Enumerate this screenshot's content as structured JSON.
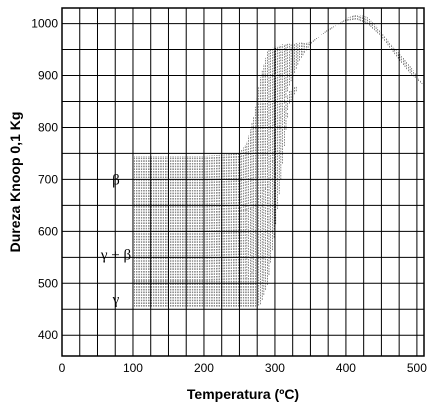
{
  "chart_data": {
    "type": "area",
    "xlabel": "Temperatura (ºC)",
    "ylabel": "Dureza Knoop 0,1 Kg",
    "xlim": [
      0,
      510
    ],
    "ylim": [
      360,
      1030
    ],
    "x_ticks": [
      0,
      100,
      200,
      300,
      400,
      500
    ],
    "x_tick_labels": [
      "0",
      "100",
      "200",
      "300",
      "400",
      "500"
    ],
    "y_ticks": [
      400,
      500,
      600,
      700,
      800,
      900,
      1000
    ],
    "y_tick_labels": [
      "400",
      "500",
      "600",
      "700",
      "800",
      "900",
      "1000"
    ],
    "grid": true,
    "grid_x_step": 25,
    "grid_y_step": 50,
    "series": [
      {
        "name": "β",
        "lower": [
          [
            100,
            635
          ],
          [
            200,
            635
          ],
          [
            250,
            638
          ],
          [
            270,
            645
          ],
          [
            290,
            690
          ],
          [
            300,
            760
          ],
          [
            310,
            830
          ],
          [
            320,
            880
          ],
          [
            335,
            930
          ],
          [
            350,
            960
          ],
          [
            375,
            990
          ],
          [
            400,
            1005
          ],
          [
            415,
            1008
          ],
          [
            430,
            1000
          ],
          [
            450,
            975
          ],
          [
            475,
            930
          ],
          [
            490,
            905
          ],
          [
            510,
            880
          ]
        ],
        "upper": [
          [
            100,
            745
          ],
          [
            200,
            745
          ],
          [
            250,
            750
          ],
          [
            260,
            770
          ],
          [
            270,
            820
          ],
          [
            280,
            900
          ],
          [
            290,
            950
          ],
          [
            310,
            960
          ],
          [
            350,
            965
          ],
          [
            380,
            990
          ],
          [
            400,
            1010
          ],
          [
            415,
            1018
          ],
          [
            430,
            1013
          ],
          [
            450,
            985
          ],
          [
            470,
            950
          ],
          [
            490,
            920
          ],
          [
            510,
            880
          ]
        ]
      },
      {
        "name": "γ + β",
        "lower": [
          [
            100,
            505
          ],
          [
            200,
            505
          ],
          [
            260,
            508
          ],
          [
            280,
            540
          ],
          [
            290,
            600
          ],
          [
            300,
            700
          ],
          [
            310,
            790
          ],
          [
            320,
            845
          ],
          [
            330,
            870
          ]
        ],
        "upper": [
          [
            100,
            635
          ],
          [
            200,
            635
          ],
          [
            250,
            638
          ],
          [
            270,
            645
          ],
          [
            290,
            690
          ],
          [
            300,
            760
          ],
          [
            310,
            830
          ],
          [
            320,
            870
          ],
          [
            330,
            880
          ]
        ]
      },
      {
        "name": "γ",
        "lower": [
          [
            100,
            455
          ],
          [
            200,
            455
          ],
          [
            275,
            455
          ],
          [
            280,
            460
          ],
          [
            290,
            500
          ],
          [
            300,
            600
          ],
          [
            310,
            720
          ],
          [
            315,
            790
          ],
          [
            320,
            840
          ]
        ],
        "upper": [
          [
            100,
            505
          ],
          [
            200,
            505
          ],
          [
            260,
            508
          ],
          [
            280,
            540
          ],
          [
            290,
            600
          ],
          [
            300,
            700
          ],
          [
            310,
            790
          ],
          [
            320,
            840
          ]
        ]
      }
    ],
    "phase_labels": [
      {
        "text": "β",
        "value": 700
      },
      {
        "text": "γ + β",
        "value": 555
      },
      {
        "text": "γ",
        "value": 470
      }
    ]
  }
}
